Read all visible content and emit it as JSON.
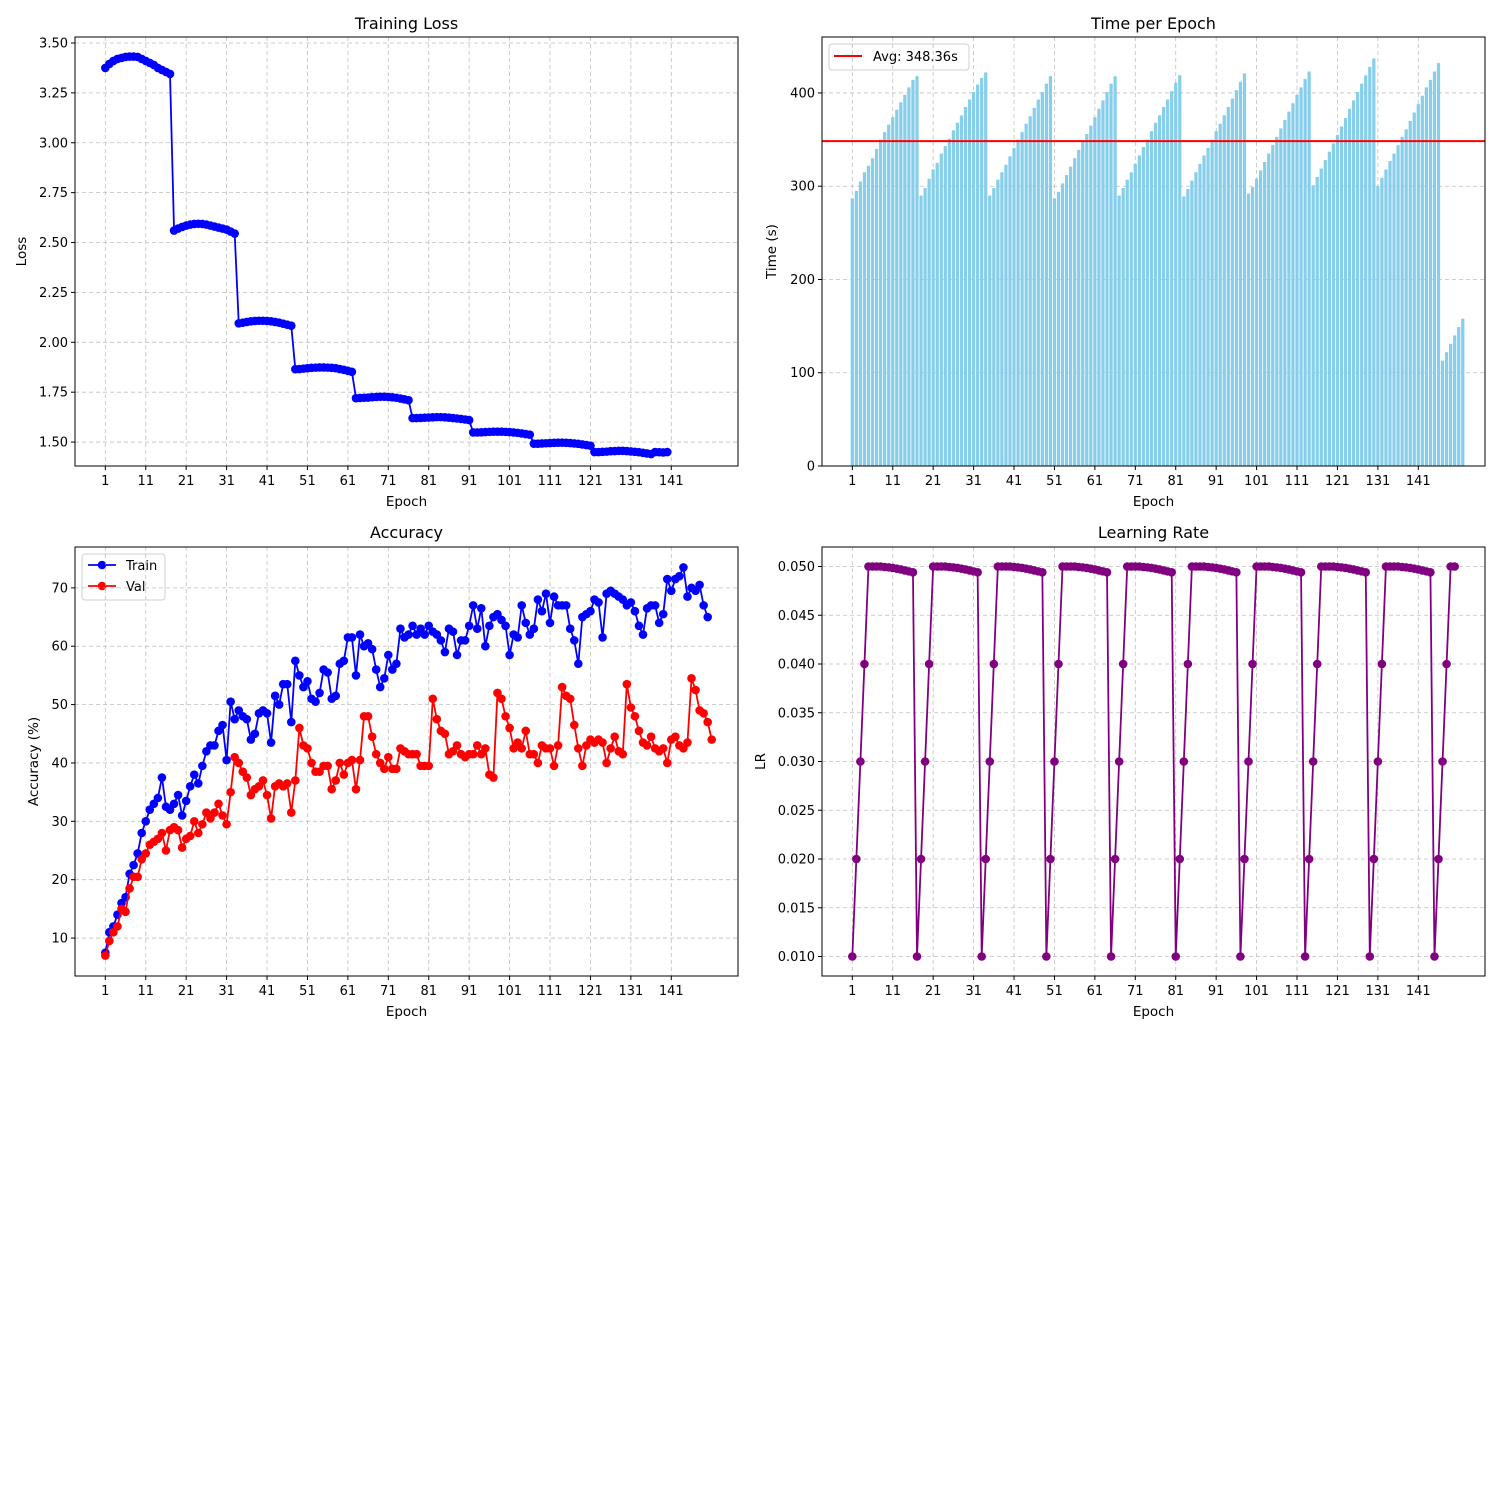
{
  "chart_data": [
    {
      "id": "loss",
      "type": "line",
      "title": "Training Loss",
      "xlabel": "Epoch",
      "ylabel": "Loss",
      "x_ticks": [
        1,
        11,
        21,
        31,
        41,
        51,
        61,
        71,
        81,
        91,
        101,
        111,
        121,
        131,
        141
      ],
      "y_ticks": [
        "1.50",
        "1.75",
        "2.00",
        "2.25",
        "2.50",
        "2.75",
        "3.00",
        "3.25",
        "3.50"
      ],
      "xlim": [
        -6.5,
        157.5
      ],
      "ylim": [
        1.38,
        3.53
      ],
      "grid": true,
      "series": [
        {
          "color": "#0000ff",
          "marker": "circle",
          "x_start": 1,
          "values": [
            3.375,
            3.395,
            3.41,
            3.42,
            3.425,
            3.43,
            3.432,
            3.432,
            3.43,
            3.42,
            3.41,
            3.4,
            3.39,
            3.375,
            3.365,
            3.355,
            3.345,
            2.56,
            2.57,
            2.578,
            2.585,
            2.59,
            2.593,
            2.594,
            2.593,
            2.59,
            2.585,
            2.58,
            2.575,
            2.57,
            2.565,
            2.555,
            2.545,
            2.095,
            2.098,
            2.102,
            2.105,
            2.107,
            2.108,
            2.108,
            2.107,
            2.105,
            2.102,
            2.098,
            2.093,
            2.088,
            2.083,
            1.865,
            1.866,
            1.868,
            1.87,
            1.872,
            1.873,
            1.874,
            1.874,
            1.873,
            1.872,
            1.87,
            1.866,
            1.862,
            1.857,
            1.852,
            1.72,
            1.721,
            1.722,
            1.723,
            1.725,
            1.726,
            1.727,
            1.727,
            1.726,
            1.724,
            1.722,
            1.718,
            1.714,
            1.71,
            1.62,
            1.62,
            1.621,
            1.622,
            1.623,
            1.624,
            1.625,
            1.625,
            1.624,
            1.622,
            1.62,
            1.618,
            1.616,
            1.613,
            1.61,
            1.548,
            1.548,
            1.549,
            1.55,
            1.551,
            1.552,
            1.552,
            1.552,
            1.551,
            1.55,
            1.548,
            1.546,
            1.543,
            1.54,
            1.537,
            1.492,
            1.492,
            1.493,
            1.494,
            1.495,
            1.496,
            1.497,
            1.497,
            1.496,
            1.495,
            1.493,
            1.491,
            1.488,
            1.485,
            1.482,
            1.45,
            1.45,
            1.451,
            1.452,
            1.454,
            1.455,
            1.456,
            1.456,
            1.455,
            1.453,
            1.451,
            1.449,
            1.446,
            1.443,
            1.44,
            1.45,
            1.449,
            1.448,
            1.45
          ]
        }
      ]
    },
    {
      "id": "time",
      "type": "bar",
      "title": "Time per Epoch",
      "xlabel": "Epoch",
      "ylabel": "Time (s)",
      "x_ticks": [
        1,
        11,
        21,
        31,
        41,
        51,
        61,
        71,
        81,
        91,
        101,
        111,
        121,
        131,
        141
      ],
      "y_ticks": [
        "0",
        "100",
        "200",
        "300",
        "400"
      ],
      "xlim": [
        -6.5,
        157.5
      ],
      "ylim": [
        0,
        460
      ],
      "grid": true,
      "bar_color": "#87ceeb",
      "x_start": 1,
      "values": [
        287,
        295,
        305,
        315,
        322,
        330,
        340,
        350,
        358,
        366,
        374,
        382,
        390,
        398,
        406,
        414,
        418,
        290,
        298,
        308,
        318,
        325,
        335,
        343,
        351,
        360,
        368,
        376,
        385,
        393,
        401,
        409,
        416,
        422,
        290,
        298,
        307,
        315,
        323,
        332,
        341,
        350,
        358,
        367,
        375,
        384,
        393,
        401,
        410,
        418,
        287,
        294,
        303,
        312,
        321,
        330,
        339,
        348,
        356,
        365,
        374,
        383,
        392,
        401,
        410,
        418,
        290,
        298,
        307,
        315,
        324,
        333,
        342,
        350,
        359,
        368,
        376,
        385,
        393,
        402,
        411,
        419,
        289,
        297,
        306,
        315,
        324,
        333,
        341,
        350,
        359,
        367,
        376,
        385,
        394,
        403,
        412,
        421,
        292,
        299,
        308,
        317,
        326,
        335,
        344,
        353,
        362,
        371,
        380,
        389,
        398,
        406,
        415,
        423,
        301,
        310,
        319,
        328,
        337,
        346,
        355,
        364,
        373,
        383,
        392,
        401,
        410,
        419,
        428,
        437,
        300,
        309,
        318,
        327,
        335,
        344,
        353,
        361,
        370,
        379,
        388,
        397,
        406,
        414,
        423,
        432,
        113,
        122,
        131,
        140,
        149,
        158
      ],
      "reference_line": {
        "value": 348.36,
        "color": "#ff0000",
        "label": "Avg: 348.36s"
      },
      "legend_position": "upper left"
    },
    {
      "id": "acc",
      "type": "line",
      "title": "Accuracy",
      "xlabel": "Epoch",
      "ylabel": "Accuracy (%)",
      "x_ticks": [
        1,
        11,
        21,
        31,
        41,
        51,
        61,
        71,
        81,
        91,
        101,
        111,
        121,
        131,
        141
      ],
      "y_ticks": [
        "10",
        "20",
        "30",
        "40",
        "50",
        "60",
        "70"
      ],
      "xlim": [
        -6.5,
        157.5
      ],
      "ylim": [
        3.5,
        77
      ],
      "grid": true,
      "legend_position": "upper left",
      "series": [
        {
          "name": "Train",
          "color": "#0000ff",
          "marker": "circle",
          "x_start": 1,
          "values": [
            7.5,
            11,
            12,
            14,
            16,
            17,
            21,
            22.5,
            24.5,
            28,
            30,
            32,
            33,
            34,
            37.5,
            32.5,
            32,
            33,
            34.5,
            31,
            33.5,
            36,
            38,
            36.5,
            39.5,
            42,
            43,
            43,
            45.5,
            46.5,
            40.5,
            50.5,
            47.5,
            49,
            48,
            47.5,
            44,
            45,
            48.5,
            49,
            48.5,
            43.5,
            51.5,
            50,
            53.5,
            53.5,
            47,
            57.5,
            55,
            53,
            54,
            51,
            50.5,
            52,
            56,
            55.5,
            51,
            51.5,
            57,
            57.5,
            61.5,
            61.5,
            55,
            62,
            60,
            60.5,
            59.5,
            56,
            53,
            54.5,
            58.5,
            56,
            57,
            63,
            61.5,
            62,
            63.5,
            62,
            63,
            62,
            63.5,
            62.5,
            62,
            61,
            59,
            63,
            62.5,
            58.5,
            61,
            61,
            63.5,
            67,
            63,
            66.5,
            60,
            63.5,
            65,
            65.5,
            64.5,
            63.5,
            58.5,
            62,
            61.5,
            67,
            64,
            62,
            63,
            68,
            66,
            69,
            64,
            68.5,
            67,
            67,
            67,
            63,
            61,
            57,
            65,
            65.5,
            66,
            68,
            67.5,
            61.5,
            69,
            69.5,
            69,
            68.5,
            68,
            67,
            67.5,
            66,
            63.5,
            62,
            66.5,
            67,
            67,
            64,
            65.5,
            71.5,
            69.5,
            71.5,
            72,
            73.5,
            68.5,
            70,
            69.5,
            70.5,
            67,
            65
          ]
        },
        {
          "name": "Val",
          "color": "#ff0000",
          "marker": "circle",
          "x_start": 1,
          "values": [
            7,
            9.5,
            11,
            12,
            15,
            14.5,
            18.5,
            20.5,
            20.5,
            23.5,
            24.5,
            26,
            26.5,
            27,
            28,
            25,
            28.5,
            29,
            28.5,
            25.5,
            27,
            27.5,
            30,
            28,
            29.5,
            31.5,
            30.5,
            31.5,
            33,
            31,
            29.5,
            35,
            41,
            40,
            38.5,
            37.5,
            34.5,
            35.5,
            36,
            37,
            34.5,
            30.5,
            36,
            36.5,
            36,
            36.5,
            31.5,
            37,
            46,
            43,
            42.5,
            40,
            38.5,
            38.5,
            39.5,
            39.5,
            35.5,
            37,
            40,
            38,
            40,
            40.5,
            35.5,
            40.5,
            48,
            48,
            44.5,
            41.5,
            40,
            39,
            41,
            39,
            39,
            42.5,
            42,
            41.5,
            41.5,
            41.5,
            39.5,
            39.5,
            39.5,
            51,
            47.5,
            45.5,
            45,
            41.5,
            42,
            43,
            41.5,
            41,
            41.5,
            41.5,
            43,
            41.5,
            42.5,
            38,
            37.5,
            52,
            51,
            48,
            46,
            42.5,
            43.5,
            42.5,
            45.5,
            41.5,
            41.5,
            40,
            43,
            42.5,
            42.5,
            39.5,
            43,
            53,
            51.5,
            51,
            46.5,
            42.5,
            39.5,
            43,
            44,
            43.5,
            44,
            43.5,
            40,
            42.5,
            44.5,
            42,
            41.5,
            53.5,
            49.5,
            48,
            45.5,
            43.5,
            43,
            44.5,
            42.5,
            42,
            42.5,
            40,
            44,
            44.5,
            43,
            42.5,
            43.5,
            54.5,
            52.5,
            49,
            48.5,
            47,
            44
          ]
        }
      ]
    },
    {
      "id": "lr",
      "type": "line",
      "title": "Learning Rate",
      "xlabel": "Epoch",
      "ylabel": "LR",
      "x_ticks": [
        1,
        11,
        21,
        31,
        41,
        51,
        61,
        71,
        81,
        91,
        101,
        111,
        121,
        131,
        141
      ],
      "y_ticks": [
        "0.010",
        "0.015",
        "0.020",
        "0.025",
        "0.030",
        "0.035",
        "0.040",
        "0.045",
        "0.050"
      ],
      "xlim": [
        -6.5,
        157.5
      ],
      "ylim": [
        0.008,
        0.052
      ],
      "grid": true,
      "series": [
        {
          "color": "#800080",
          "marker": "circle",
          "x_start": 1,
          "values": [
            0.01,
            0.02,
            0.03,
            0.04,
            0.05,
            0.05,
            0.05,
            0.05,
            0.04995,
            0.04991,
            0.04985,
            0.04978,
            0.0497,
            0.0496,
            0.0495,
            0.0494,
            0.01,
            0.02,
            0.03,
            0.04,
            0.05,
            0.05,
            0.05,
            0.05,
            0.04995,
            0.04991,
            0.04985,
            0.04978,
            0.0497,
            0.0496,
            0.0495,
            0.0494,
            0.01,
            0.02,
            0.03,
            0.04,
            0.05,
            0.05,
            0.05,
            0.05,
            0.04995,
            0.04991,
            0.04985,
            0.04978,
            0.0497,
            0.0496,
            0.0495,
            0.0494,
            0.01,
            0.02,
            0.03,
            0.04,
            0.05,
            0.05,
            0.05,
            0.05,
            0.04995,
            0.04991,
            0.04985,
            0.04978,
            0.0497,
            0.0496,
            0.0495,
            0.0494,
            0.01,
            0.02,
            0.03,
            0.04,
            0.05,
            0.05,
            0.05,
            0.05,
            0.04995,
            0.04991,
            0.04985,
            0.04978,
            0.0497,
            0.0496,
            0.0495,
            0.0494,
            0.01,
            0.02,
            0.03,
            0.04,
            0.05,
            0.05,
            0.05,
            0.05,
            0.04995,
            0.04991,
            0.04985,
            0.04978,
            0.0497,
            0.0496,
            0.0495,
            0.0494,
            0.01,
            0.02,
            0.03,
            0.04,
            0.05,
            0.05,
            0.05,
            0.05,
            0.04995,
            0.04991,
            0.04985,
            0.04978,
            0.0497,
            0.0496,
            0.0495,
            0.0494,
            0.01,
            0.02,
            0.03,
            0.04,
            0.05,
            0.05,
            0.05,
            0.05,
            0.04995,
            0.04991,
            0.04985,
            0.04978,
            0.0497,
            0.0496,
            0.0495,
            0.0494,
            0.01,
            0.02,
            0.03,
            0.04,
            0.05,
            0.05,
            0.05,
            0.05,
            0.04995,
            0.04991,
            0.04985,
            0.04978,
            0.0497,
            0.0496,
            0.0495,
            0.0494,
            0.01,
            0.02,
            0.03,
            0.04,
            0.05,
            0.05
          ]
        }
      ]
    }
  ]
}
